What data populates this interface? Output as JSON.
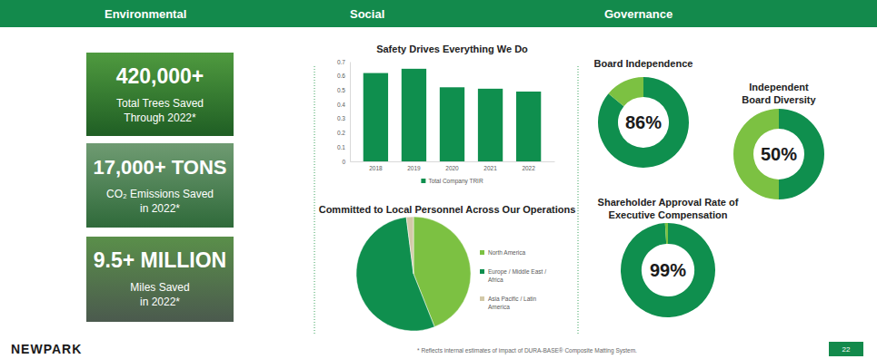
{
  "sections": [
    "Environmental",
    "Social",
    "Governance"
  ],
  "tiles": [
    {
      "value": "420,000+",
      "label": [
        "Total Trees Saved",
        "Through 2022*"
      ]
    },
    {
      "value": "17,000+ TONS",
      "label": [
        "CO₂ Emissions Saved",
        "in 2022*"
      ]
    },
    {
      "value": "9.5+ MILLION",
      "label": [
        "Miles Saved",
        "in 2022*"
      ]
    }
  ],
  "chart_data": [
    {
      "type": "bar",
      "title": "Safety Drives Everything We Do",
      "categories": [
        "2018",
        "2019",
        "2020",
        "2021",
        "2022"
      ],
      "series": [
        {
          "name": "Total Company TRIR",
          "color": "#0f8f4e",
          "values": [
            0.62,
            0.65,
            0.52,
            0.51,
            0.49
          ]
        }
      ],
      "ylim": [
        0,
        0.7
      ],
      "yticks": [
        0,
        0.1,
        0.2,
        0.3,
        0.4,
        0.5,
        0.6,
        0.7
      ],
      "grid": false,
      "legend": "bottom"
    },
    {
      "type": "pie",
      "title": "Committed to Local Personnel Across Our Operations",
      "categories": [
        "North America",
        "Europe / Middle East / Africa",
        "Asia Pacific / Latin America"
      ],
      "values": [
        44,
        54,
        2
      ],
      "colors": [
        "#7cc142",
        "#0f8f4e",
        "#d3c9a8"
      ],
      "legend": "right"
    },
    {
      "type": "donut",
      "title": "Board Independence",
      "values": [
        86,
        14
      ],
      "colors": [
        "#0f8f4e",
        "#7cc142"
      ],
      "data_labels": true,
      "value_labels": [
        "86%",
        null
      ]
    },
    {
      "type": "donut",
      "title": "Independent Board Diversity",
      "values": [
        50,
        50
      ],
      "colors": [
        "#0f8f4e",
        "#7cc142"
      ],
      "data_labels": true,
      "value_labels": [
        "50%",
        null
      ]
    },
    {
      "type": "donut",
      "title": "Shareholder Approval Rate of Executive Compensation",
      "values": [
        99,
        1
      ],
      "colors": [
        "#0f8f4e",
        "#7cc142"
      ],
      "data_labels": true,
      "value_labels": [
        "99%",
        null
      ]
    }
  ],
  "footer": {
    "logo": "NEWPARK",
    "note": "* Reflects internal estimates of impact of DURA-BASE® Composite Matting System.",
    "page": "22"
  }
}
